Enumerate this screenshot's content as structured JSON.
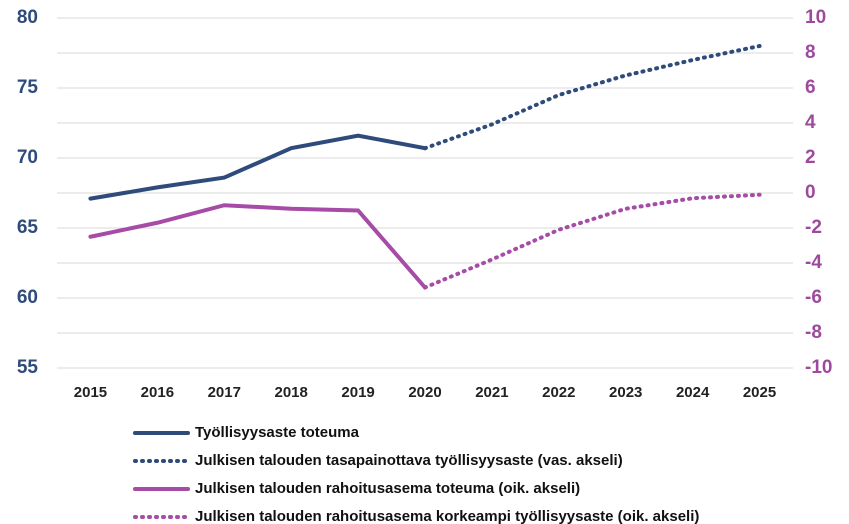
{
  "chart_data": {
    "type": "line",
    "categories": [
      "2015",
      "2016",
      "2017",
      "2018",
      "2019",
      "2020",
      "2021",
      "2022",
      "2023",
      "2024",
      "2025"
    ],
    "ylim": [
      55,
      80
    ],
    "yticks": [
      55,
      60,
      65,
      70,
      75,
      80
    ],
    "y2lim": [
      -10,
      10
    ],
    "y2ticks": [
      -10,
      -8,
      -6,
      -4,
      -2,
      0,
      2,
      4,
      6,
      8,
      10
    ],
    "yaxis_color": "#2f4b7c",
    "y2axis_color": "#9e4a9c",
    "grid": true,
    "legend": "bottom",
    "series": [
      {
        "name": "Työllisyysaste toteuma",
        "color": "#2f4b7c",
        "line_style": "solid",
        "values": [
          67.1,
          67.9,
          68.6,
          70.7,
          71.6,
          70.7,
          null,
          null,
          null,
          null,
          null
        ]
      },
      {
        "name": "Julkisen talouden tasapainottava työllisyysaste (vas. akseli)",
        "color": "#2f4b7c",
        "line_style": "dotted",
        "values": [
          null,
          null,
          null,
          null,
          null,
          70.7,
          72.4,
          74.5,
          75.9,
          77.0,
          78.0
        ]
      },
      {
        "name": "Julkisen talouden rahoitusasema toteuma (oik. akseli)",
        "color": "#a64ca6",
        "line_style": "solid",
        "axis": "y2",
        "values": [
          -2.5,
          -1.7,
          -0.7,
          -0.9,
          -1.0,
          -5.4,
          null,
          null,
          null,
          null,
          null
        ]
      },
      {
        "name": "Julkisen talouden rahoitusasema korkeampi työllisyysaste (oik. akseli)",
        "color": "#a64ca6",
        "line_style": "dotted",
        "axis": "y2",
        "values": [
          null,
          null,
          null,
          null,
          null,
          -5.4,
          -3.8,
          -2.1,
          -0.9,
          -0.3,
          -0.1
        ]
      }
    ]
  }
}
